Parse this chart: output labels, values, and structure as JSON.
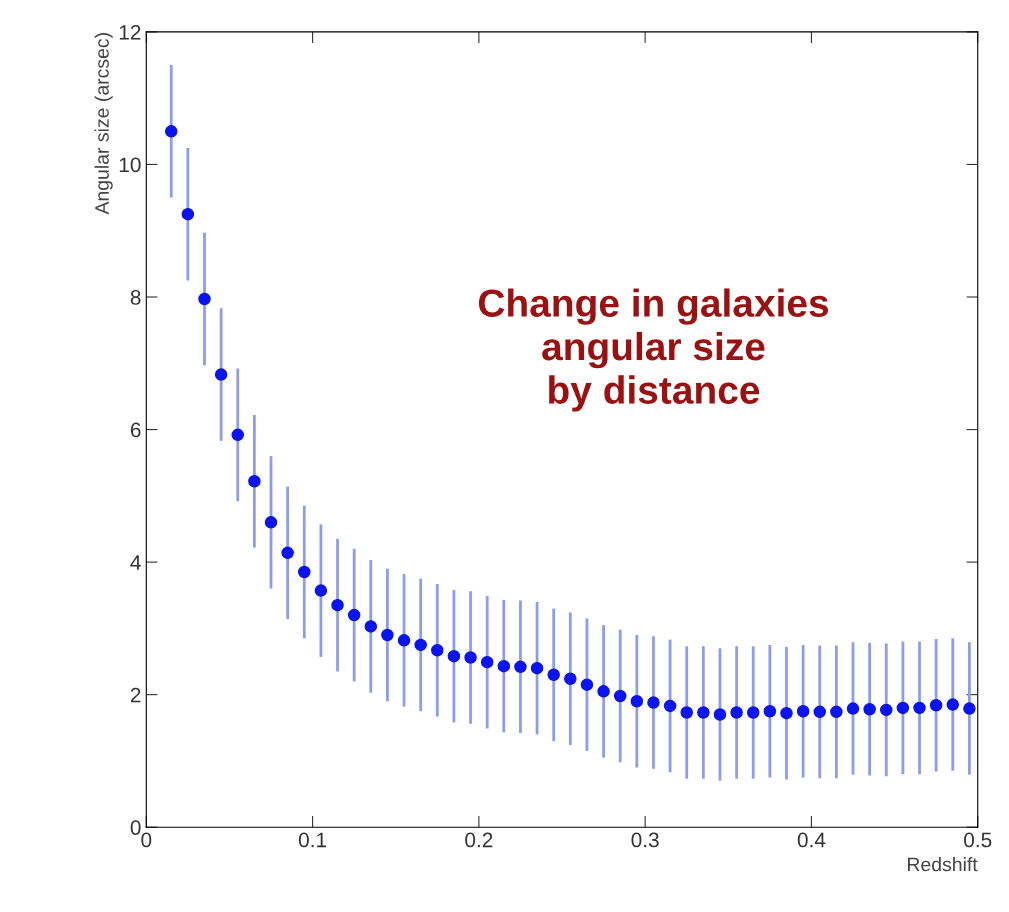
{
  "chart_data": {
    "type": "scatter",
    "xlabel": "Redshift",
    "ylabel": "Angular size (arcsec)",
    "x": [
      0.015,
      0.025,
      0.035,
      0.045,
      0.055,
      0.065,
      0.075,
      0.085,
      0.095,
      0.105,
      0.115,
      0.125,
      0.135,
      0.145,
      0.155,
      0.165,
      0.175,
      0.185,
      0.195,
      0.205,
      0.215,
      0.225,
      0.235,
      0.245,
      0.255,
      0.265,
      0.275,
      0.285,
      0.295,
      0.305,
      0.315,
      0.325,
      0.335,
      0.345,
      0.355,
      0.365,
      0.375,
      0.385,
      0.395,
      0.405,
      0.415,
      0.425,
      0.435,
      0.445,
      0.455,
      0.465,
      0.475,
      0.485,
      0.495
    ],
    "series": [
      {
        "color": "#0a14f0",
        "values": [
          10.5,
          9.25,
          7.97,
          6.83,
          5.92,
          5.22,
          4.6,
          4.14,
          3.85,
          3.57,
          3.35,
          3.2,
          3.03,
          2.9,
          2.82,
          2.75,
          2.67,
          2.58,
          2.56,
          2.49,
          2.43,
          2.42,
          2.4,
          2.3,
          2.24,
          2.15,
          2.05,
          1.98,
          1.9,
          1.88,
          1.83,
          1.73,
          1.73,
          1.7,
          1.73,
          1.73,
          1.75,
          1.72,
          1.75,
          1.74,
          1.74,
          1.79,
          1.78,
          1.77,
          1.8,
          1.8,
          1.84,
          1.85,
          1.79
        ],
        "errors": [
          1,
          1,
          1,
          1,
          1,
          1,
          1,
          1,
          1,
          1,
          1,
          1,
          1,
          1,
          1,
          1,
          1,
          1,
          1,
          1,
          1,
          1,
          1,
          1,
          1,
          1,
          1,
          1,
          1,
          1,
          1,
          1,
          1,
          1,
          1,
          1,
          1,
          1,
          1,
          1,
          1,
          1,
          1,
          1,
          1,
          1,
          1,
          1,
          1
        ]
      }
    ],
    "xlim": [
      0,
      0.5
    ],
    "xticks": [
      0,
      0.1,
      0.2,
      0.3,
      0.4,
      0.5
    ],
    "ylim": [
      0,
      12
    ],
    "yticks": [
      0,
      2,
      4,
      6,
      8,
      10,
      12
    ],
    "marker": "circle",
    "grid": false,
    "legend": false,
    "annotations": [
      "Change in galaxies\nangular size\nby distance"
    ]
  }
}
